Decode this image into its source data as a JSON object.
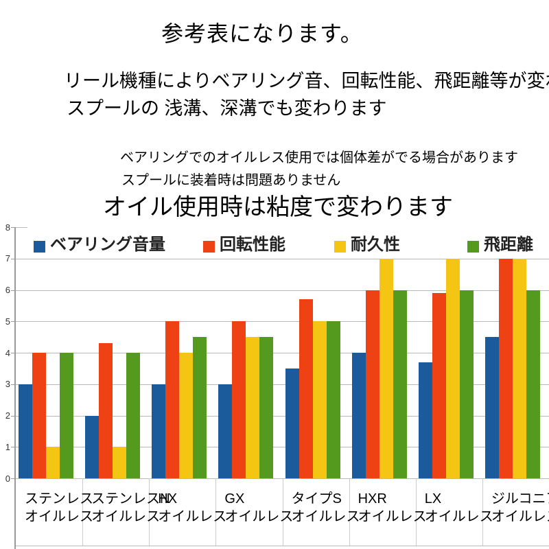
{
  "page": {
    "title": "参考表になります。",
    "intro_line1": "リール機種によりベアリング音、回転性能、飛距離等が変わります。",
    "intro_line2": "スプールの 浅溝、深溝でも変わります",
    "note_line1": "ベアリングでのオイルレス使用では個体差がでる場合があります",
    "note_line2": "スプールに装着時は問題ありません",
    "subtitle": "オイル使用時は粘度で変わります"
  },
  "chart_data": {
    "type": "bar",
    "title": "",
    "xlabel": "",
    "ylabel": "",
    "ylim": [
      0,
      8
    ],
    "yticks": [
      0,
      1,
      2,
      3,
      4,
      5,
      6,
      7,
      8
    ],
    "grid": true,
    "legend_position": "top",
    "categories": [
      {
        "line1": "ステンレス",
        "line2": "オイルレス"
      },
      {
        "line1": "ステンレスN",
        "line2": "オイルレス"
      },
      {
        "line1": "HX",
        "line2": "オイルレス"
      },
      {
        "line1": "GX",
        "line2": "オイルレス"
      },
      {
        "line1": "タイプS",
        "line2": "オイルレス"
      },
      {
        "line1": "HXR",
        "line2": "オイルレス"
      },
      {
        "line1": "LX",
        "line2": "オイルレス"
      },
      {
        "line1": "ジルコニア",
        "line2": "オイルレス"
      }
    ],
    "series": [
      {
        "name": "ベアリング音量",
        "color": "#1B5A9B",
        "values": [
          3,
          2,
          3,
          3,
          3.5,
          4,
          3.7,
          4.5
        ]
      },
      {
        "name": "回転性能",
        "color": "#EE4214",
        "values": [
          4,
          4.3,
          5,
          5,
          5.7,
          6,
          5.9,
          7
        ]
      },
      {
        "name": "耐久性",
        "color": "#F5C513",
        "values": [
          1,
          1,
          4,
          4.5,
          5,
          7,
          7,
          7
        ]
      },
      {
        "name": "飛距離",
        "color": "#549A1E",
        "values": [
          4,
          4,
          4.5,
          4.5,
          5,
          6,
          6,
          6
        ]
      }
    ],
    "colors": {
      "grid": "#b8b8b8",
      "axis": "#9a9a9a",
      "divider": "#cccccc"
    }
  }
}
